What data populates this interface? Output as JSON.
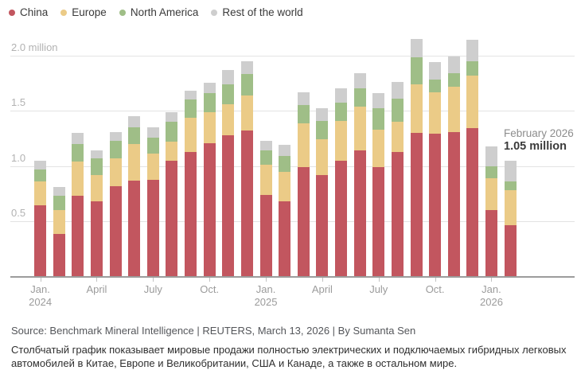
{
  "legend": {
    "items": [
      {
        "label": "China",
        "color": "#c2565f"
      },
      {
        "label": "Europe",
        "color": "#ebcb87"
      },
      {
        "label": "North America",
        "color": "#9fbe87"
      },
      {
        "label": "Rest of the world",
        "color": "#cecece"
      }
    ]
  },
  "chart_data": {
    "type": "bar",
    "stacked": true,
    "unit": "million vehicles per month",
    "x": [
      "Jan. 2024",
      "Feb. 2024",
      "Mar. 2024",
      "Apr. 2024",
      "May 2024",
      "Jun. 2024",
      "Jul. 2024",
      "Aug. 2024",
      "Sep. 2024",
      "Oct. 2024",
      "Nov. 2024",
      "Dec. 2024",
      "Jan. 2025",
      "Feb. 2025",
      "Mar. 2025",
      "Apr. 2025",
      "May 2025",
      "Jun. 2025",
      "Jul. 2025",
      "Aug. 2025",
      "Sep. 2025",
      "Oct. 2025",
      "Nov. 2025",
      "Dec. 2025",
      "Jan. 2026",
      "Feb. 2026"
    ],
    "series": [
      {
        "name": "China",
        "color": "#c2565f",
        "values": [
          0.65,
          0.39,
          0.73,
          0.68,
          0.82,
          0.87,
          0.88,
          1.05,
          1.13,
          1.21,
          1.28,
          1.32,
          0.74,
          0.68,
          0.99,
          0.92,
          1.05,
          1.14,
          0.99,
          1.13,
          1.3,
          1.29,
          1.31,
          1.34,
          0.6,
          0.47
        ]
      },
      {
        "name": "Europe",
        "color": "#ebcb87",
        "values": [
          0.21,
          0.21,
          0.31,
          0.24,
          0.25,
          0.33,
          0.23,
          0.17,
          0.31,
          0.28,
          0.28,
          0.32,
          0.27,
          0.27,
          0.4,
          0.32,
          0.36,
          0.4,
          0.34,
          0.27,
          0.44,
          0.38,
          0.41,
          0.48,
          0.29,
          0.31
        ]
      },
      {
        "name": "North America",
        "color": "#9fbe87",
        "values": [
          0.11,
          0.13,
          0.16,
          0.15,
          0.16,
          0.15,
          0.15,
          0.18,
          0.16,
          0.17,
          0.18,
          0.19,
          0.13,
          0.14,
          0.16,
          0.17,
          0.16,
          0.16,
          0.19,
          0.21,
          0.24,
          0.11,
          0.12,
          0.13,
          0.11,
          0.08
        ]
      },
      {
        "name": "Rest of the world",
        "color": "#cecece",
        "values": [
          0.08,
          0.08,
          0.1,
          0.07,
          0.08,
          0.1,
          0.09,
          0.09,
          0.08,
          0.09,
          0.13,
          0.12,
          0.09,
          0.1,
          0.12,
          0.11,
          0.13,
          0.14,
          0.14,
          0.15,
          0.17,
          0.16,
          0.15,
          0.19,
          0.18,
          0.19
        ]
      }
    ],
    "ylim": [
      0,
      2.2
    ],
    "yticks": [
      {
        "value": 0.5,
        "label": "0.5"
      },
      {
        "value": 1.0,
        "label": "1.0"
      },
      {
        "value": 1.5,
        "label": "1.5"
      },
      {
        "value": 2.0,
        "label": "2.0 million"
      }
    ],
    "xticks": [
      {
        "index": 0,
        "label": "Jan.",
        "sublabel": "2024"
      },
      {
        "index": 3,
        "label": "April"
      },
      {
        "index": 6,
        "label": "July"
      },
      {
        "index": 9,
        "label": "Oct."
      },
      {
        "index": 12,
        "label": "Jan.",
        "sublabel": "2025"
      },
      {
        "index": 15,
        "label": "April"
      },
      {
        "index": 18,
        "label": "July"
      },
      {
        "index": 21,
        "label": "Oct."
      },
      {
        "index": 24,
        "label": "Jan.",
        "sublabel": "2026"
      }
    ],
    "grid": true,
    "legend_position": "top-left",
    "annotation": {
      "line1": "February 2026",
      "line2": "1.05 million",
      "month": "Feb. 2026",
      "total": 1.05
    }
  },
  "footer": {
    "source": "Source: Benchmark Mineral Intelligence  | REUTERS, March 13, 2026 | By Sumanta Sen",
    "caption": "Столбчатый график показывает мировые продажи полностью электрических и подключаемых гибридных легковых автомобилей в Китае, Европе и Великобритании, США и Канаде, а также в остальном мире."
  }
}
